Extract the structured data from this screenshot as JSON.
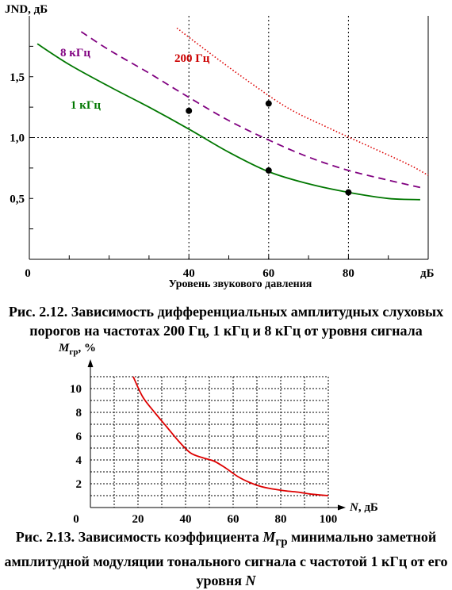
{
  "figure1": {
    "chart_data": {
      "type": "line",
      "ylabel": "JND, дБ",
      "xlabel": "Уровень звукового давления",
      "x_unit": "дБ",
      "xlim": [
        0,
        100
      ],
      "ylim": [
        0,
        2.0
      ],
      "x_ticks": [
        "0",
        "40",
        "60",
        "80"
      ],
      "y_ticks": [
        "0,5",
        "1,0",
        "1,5"
      ],
      "grid": "dotted at x=40,60,80 and y=1,0",
      "series": [
        {
          "name": "200 Гц",
          "color": "#dd0000",
          "style": "dotted",
          "x": [
            37,
            45,
            55,
            65,
            75,
            85,
            95,
            100
          ],
          "y": [
            1.9,
            1.7,
            1.46,
            1.24,
            1.08,
            0.93,
            0.78,
            0.69
          ]
        },
        {
          "name": "8 кГц",
          "color": "#800080",
          "style": "dashed",
          "x": [
            13,
            20,
            30,
            40,
            50,
            60,
            70,
            80,
            90,
            98
          ],
          "y": [
            1.87,
            1.72,
            1.53,
            1.33,
            1.14,
            0.98,
            0.84,
            0.73,
            0.65,
            0.59
          ]
        },
        {
          "name": "1 кГц",
          "color": "#007700",
          "style": "solid",
          "x": [
            2,
            10,
            20,
            30,
            40,
            50,
            60,
            70,
            80,
            90,
            98
          ],
          "y": [
            1.77,
            1.6,
            1.42,
            1.25,
            1.07,
            0.88,
            0.72,
            0.62,
            0.55,
            0.5,
            0.49
          ]
        }
      ],
      "markers": [
        {
          "x": 40,
          "y": 1.22
        },
        {
          "x": 60,
          "y": 1.28
        },
        {
          "x": 60,
          "y": 0.73
        },
        {
          "x": 80,
          "y": 0.55
        }
      ]
    },
    "caption": "Рис. 2.12. Зависимость дифференциальных амплитудных слуховых порогов на частотах 200 Гц, 1 кГц и 8 кГц от уровня сигнала"
  },
  "figure2": {
    "chart_data": {
      "type": "line",
      "ylabel_main": "M",
      "ylabel_sub": "гр",
      "ylabel_unit": ", %",
      "xlabel_main": "N",
      "xlabel_unit": ", дБ",
      "xlim": [
        0,
        100
      ],
      "ylim": [
        0,
        11
      ],
      "x_ticks": [
        "0",
        "20",
        "40",
        "60",
        "80",
        "100"
      ],
      "y_ticks": [
        "2",
        "4",
        "6",
        "8",
        "10"
      ],
      "grid": "dotted at every 10 on x and every 1 on y",
      "series": [
        {
          "name": "",
          "color": "#dd0000",
          "x": [
            18,
            22,
            27,
            32,
            37,
            42,
            47,
            52,
            57,
            62,
            67,
            72,
            77,
            82,
            87,
            92,
            97,
            100
          ],
          "y": [
            11,
            9.3,
            8.0,
            6.8,
            5.6,
            4.6,
            4.2,
            3.9,
            3.3,
            2.6,
            2.1,
            1.75,
            1.55,
            1.4,
            1.3,
            1.15,
            1.05,
            1.0
          ]
        }
      ]
    },
    "caption_prefix": "Рис. 2.13. Зависимость коэффициента ",
    "caption_symbol": "M",
    "caption_sub": "гр",
    "caption_suffix": " минимально заметной амплитудной модуляции тонального сигнала с частотой 1 кГц от его уровня ",
    "caption_end": "N"
  }
}
